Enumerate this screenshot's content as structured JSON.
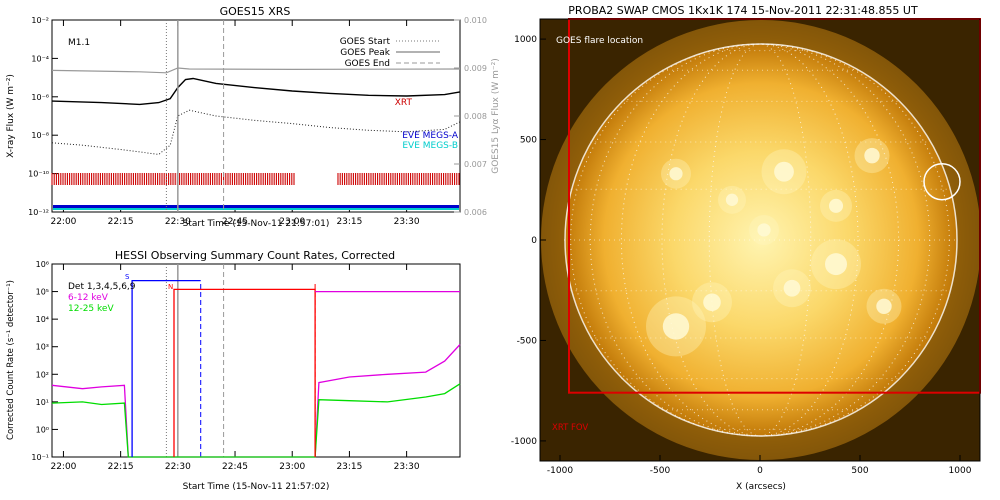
{
  "colors": {
    "goes_flux": "#000000",
    "lya_flux": "#999999",
    "obs_bar": "#cc0000",
    "megs_a": "#0000cc",
    "megs_b": "#00cccc",
    "det_6_12": "#e000e0",
    "det_12_25": "#00dd00",
    "attenuator": "#ff0000",
    "saa": "#0000ff",
    "sun_core": "#fff0a0",
    "sun_edge": "#e89c10",
    "fov": "#dd0000"
  },
  "chart_data": [
    {
      "type": "line",
      "title": "GOES15 XRS",
      "xlabel": "Start Time (15-Nov-11 21:57:01)",
      "ylabel": "X-ray Flux (W m⁻²)",
      "y2label": "GOES15 Lyα Flux (W m⁻²)",
      "yscale": "log",
      "xlim": [
        "21:57",
        "23:44"
      ],
      "ylim": [
        1e-12,
        0.01
      ],
      "y2lim": [
        0.006,
        0.01
      ],
      "xticks": [
        "22:00",
        "22:15",
        "22:30",
        "22:45",
        "23:00",
        "23:15",
        "23:30"
      ],
      "yticks": [
        "10⁻¹²",
        "10⁻¹⁰",
        "10⁻⁸",
        "10⁻⁶",
        "10⁻⁴",
        "10⁻²"
      ],
      "y2ticks": [
        "0.006",
        "0.007",
        "0.008",
        "0.009",
        "0.010"
      ],
      "annotation": "M1.1",
      "legend": [
        {
          "label": "GOES Start",
          "style": "dotted"
        },
        {
          "label": "GOES Peak",
          "style": "solid"
        },
        {
          "label": "GOES End",
          "style": "dashed"
        }
      ],
      "labels": [
        "XRT",
        "EVE MEGS-A",
        "EVE MEGS-B"
      ],
      "events": {
        "start": "22:27",
        "peak": "22:30",
        "end": "22:42"
      },
      "series": [
        {
          "name": "GOES flux",
          "x": [
            "21:57",
            "22:10",
            "22:20",
            "22:25",
            "22:28",
            "22:30",
            "22:32",
            "22:34",
            "22:40",
            "22:50",
            "23:00",
            "23:10",
            "23:20",
            "23:30",
            "23:40",
            "23:44"
          ],
          "values": [
            6e-07,
            5e-07,
            4e-07,
            5e-07,
            8e-07,
            3e-06,
            8e-06,
            9e-06,
            5e-06,
            3e-06,
            2e-06,
            1.5e-06,
            1.2e-06,
            1.1e-06,
            1.3e-06,
            1.8e-06
          ]
        },
        {
          "name": "Lyα flux",
          "x": [
            "21:57",
            "22:20",
            "22:27",
            "22:30",
            "22:33",
            "23:00",
            "23:44"
          ],
          "values": [
            0.00895,
            0.00892,
            0.0089,
            0.009,
            0.00898,
            0.00897,
            0.00898
          ]
        },
        {
          "name": "GOES lower",
          "x": [
            "21:57",
            "22:05",
            "22:15",
            "22:25",
            "22:28",
            "22:30",
            "22:33",
            "22:40",
            "22:50",
            "23:00",
            "23:10",
            "23:20",
            "23:30",
            "23:40",
            "23:44"
          ],
          "values": [
            4e-09,
            3e-09,
            1.8e-09,
            1e-09,
            3e-09,
            1e-07,
            2e-07,
            1e-07,
            6e-08,
            4e-08,
            2.5e-08,
            1.8e-08,
            1.5e-08,
            2e-08,
            5e-08
          ]
        }
      ],
      "observing_intervals": [
        [
          "21:57",
          "23:01"
        ],
        [
          "23:12",
          "23:44"
        ]
      ]
    },
    {
      "type": "line",
      "title": "HESSI Observing Summary Count Rates, Corrected",
      "xlabel": "Start Time (15-Nov-11 21:57:02)",
      "ylabel": "Corrected Count Rate (s⁻¹ detector⁻¹)",
      "yscale": "log",
      "xlim": [
        "21:57",
        "23:44"
      ],
      "ylim": [
        0.1,
        1000000.0
      ],
      "xticks": [
        "22:00",
        "22:15",
        "22:30",
        "22:45",
        "23:00",
        "23:15",
        "23:30"
      ],
      "yticks": [
        "10⁻¹",
        "10⁰",
        "10¹",
        "10²",
        "10³",
        "10⁴",
        "10⁵",
        "10⁶"
      ],
      "legend": [
        {
          "label": "Det 1,3,4,5,6,9"
        },
        {
          "label": "6-12 keV"
        },
        {
          "label": "12-25 keV"
        }
      ],
      "markers": [
        "S",
        "N"
      ],
      "series": [
        {
          "name": "6-12 keV",
          "x": [
            "21:57",
            "22:05",
            "22:10",
            "22:16",
            "22:17",
            "23:06",
            "23:07",
            "23:15",
            "23:25",
            "23:35",
            "23:40",
            "23:44"
          ],
          "values": [
            40,
            30,
            35,
            40,
            0.1,
            0.1,
            50,
            80,
            100,
            120,
            300,
            1200
          ]
        },
        {
          "name": "12-25 keV",
          "x": [
            "21:57",
            "22:05",
            "22:10",
            "22:16",
            "22:17",
            "23:06",
            "23:07",
            "23:15",
            "23:25",
            "23:35",
            "23:40",
            "23:44"
          ],
          "values": [
            9,
            10,
            8,
            9,
            0.1,
            0.1,
            12,
            11,
            10,
            15,
            20,
            45
          ]
        },
        {
          "name": "Attenuator",
          "x": [
            "22:29",
            "22:29",
            "23:06",
            "23:06"
          ],
          "values": [
            0.1,
            120000.0,
            120000.0,
            0.1
          ]
        },
        {
          "name": "SAA",
          "x": [
            "22:18",
            "22:18",
            "22:36"
          ],
          "values": [
            0.1,
            250000.0,
            250000.0
          ]
        },
        {
          "name": "Level",
          "x": [
            "23:06",
            "23:44"
          ],
          "values": [
            100000.0,
            100000.0
          ]
        }
      ]
    },
    {
      "type": "heatmap",
      "title": "PROBA2 SWAP CMOS 1Kx1K 174 15-Nov-2011 22:31:48.855 UT",
      "xlabel": "X (arcsecs)",
      "ylabel": "",
      "xlim": [
        -1100,
        1100
      ],
      "ylim": [
        -1100,
        1100
      ],
      "xticks": [
        "-1000",
        "-500",
        "0",
        "500",
        "1000"
      ],
      "yticks": [
        "-1000",
        "-500",
        "0",
        "500",
        "1000"
      ],
      "labels": [
        "GOES flare location",
        "XRT FOV"
      ],
      "flare_location": {
        "x": 910,
        "y": 290
      },
      "xrt_fov": {
        "x": [
          -955,
          1100
        ],
        "y": [
          -760,
          1100
        ]
      }
    }
  ]
}
